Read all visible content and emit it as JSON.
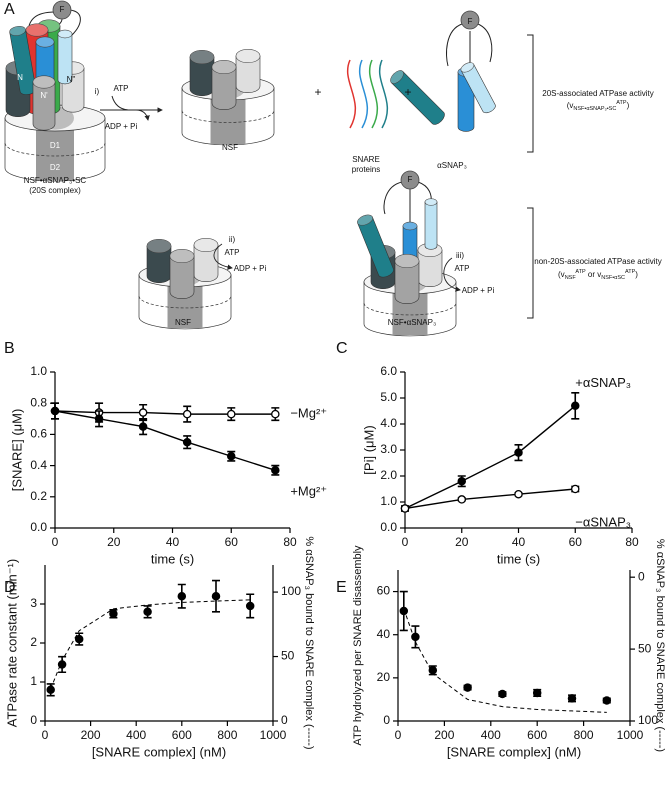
{
  "diagram": {
    "panel_label": "A",
    "top_row": {
      "complex": {
        "f": "F",
        "domains": [
          "N",
          "N'",
          "N''",
          "D1",
          "D2"
        ],
        "label": "NSF•αSNAP₃•SC",
        "sublabel": "(20S complex)"
      },
      "step": "i)",
      "reactant": "ATP",
      "product": "ADP + Pi",
      "nsf_label": "NSF",
      "plus": [
        "+",
        "+"
      ],
      "snare_label": [
        "SNARE",
        "proteins"
      ],
      "snap": {
        "f": "F",
        "label": "αSNAP₃"
      },
      "activity": "20S-associated ATPase activity",
      "rate_parts": [
        {
          "text": "(v"
        },
        {
          "text": "NSF•αSNAP₃•SC",
          "shift": "sub"
        },
        {
          "text": "ATP",
          "shift": "super"
        },
        {
          "text": ")"
        }
      ]
    },
    "bottom_row": {
      "nsf_label": "NSF",
      "nsf_step": "ii)",
      "nsf_reactant": "ATP",
      "nsf_product": "ADP + Pi",
      "complex": {
        "f": "F",
        "label": "NSF•αSNAP₃"
      },
      "complex_step": "iii)",
      "complex_reactant": "ATP",
      "complex_product": "ADP + Pi",
      "activity": "non-20S-associated ATPase activity",
      "rate_parts": [
        {
          "text": "(v"
        },
        {
          "text": "NSF",
          "shift": "sub"
        },
        {
          "text": "ATP",
          "shift": "super"
        },
        {
          "text": " or v"
        },
        {
          "text": "NSF•αSC",
          "shift": "sub"
        },
        {
          "text": "ATP",
          "shift": "super"
        },
        {
          "text": ")"
        }
      ]
    }
  },
  "chart_data": [
    {
      "type": "line",
      "panel_label": "B",
      "xlabel": "time (s)",
      "ylabel": "[SNARE] (μM)",
      "xlim": [
        0,
        80
      ],
      "ylim": [
        0,
        1
      ],
      "xticks": [
        0,
        20,
        40,
        60,
        80
      ],
      "yticks": [
        {
          "value": 0,
          "label": "0.0"
        },
        0.2,
        0.4,
        0.6,
        0.8,
        {
          "value": 1,
          "label": "1.0"
        }
      ],
      "x": [
        0,
        15,
        30,
        45,
        60,
        75
      ],
      "series": [
        {
          "name": "−Mg²⁺",
          "color": "#000000",
          "marker": "open",
          "line": "solid",
          "values": [
            0.75,
            0.74,
            0.74,
            0.73,
            0.73,
            0.73
          ],
          "errors": [
            0.05,
            0.06,
            0.05,
            0.05,
            0.04,
            0.04
          ]
        },
        {
          "name": "+Mg²⁺",
          "color": "#000000",
          "marker": "filled",
          "line": "solid",
          "values": [
            0.75,
            0.7,
            0.65,
            0.55,
            0.46,
            0.37
          ],
          "errors": [
            0.05,
            0.05,
            0.05,
            0.04,
            0.03,
            0.03
          ]
        }
      ]
    },
    {
      "type": "line",
      "panel_label": "C",
      "xlabel": "time (s)",
      "ylabel": "[Pi] (μM)",
      "xlim": [
        0,
        80
      ],
      "ylim": [
        0,
        6
      ],
      "xticks": [
        0,
        20,
        40,
        60,
        80
      ],
      "yticks": [
        {
          "value": 0,
          "label": "0.0"
        },
        {
          "value": 1,
          "label": "1.0"
        },
        {
          "value": 2,
          "label": "2.0"
        },
        {
          "value": 3,
          "label": "3.0"
        },
        {
          "value": 4,
          "label": "4.0"
        },
        {
          "value": 5,
          "label": "5.0"
        },
        {
          "value": 6,
          "label": "6.0"
        }
      ],
      "x": [
        0,
        20,
        40,
        60
      ],
      "series": [
        {
          "name": "+αSNAP₃",
          "color": "#000000",
          "marker": "filled",
          "line": "solid",
          "values": [
            0.75,
            1.8,
            2.9,
            4.7
          ],
          "errors": [
            0.1,
            0.2,
            0.3,
            0.5
          ]
        },
        {
          "name": "−αSNAP₃",
          "color": "#000000",
          "marker": "open",
          "line": "solid",
          "values": [
            0.75,
            1.1,
            1.3,
            1.5
          ],
          "errors": [
            0.05,
            0.05,
            0.05,
            0.1
          ]
        }
      ]
    },
    {
      "type": "line",
      "panel_label": "D",
      "xlabel": "[SNARE complex] (nM)",
      "ylabel": "ATPase rate constant (min⁻¹)",
      "y2label": "% αSNAP₃ bound to SNARE complex (-----)",
      "xlim": [
        0,
        1000
      ],
      "ylim": [
        0,
        4
      ],
      "y2lim": [
        0,
        121
      ],
      "xticks": [
        0,
        200,
        400,
        600,
        800,
        1000
      ],
      "yticks": [
        0,
        1,
        2,
        3
      ],
      "y2ticks": [
        0,
        50,
        100
      ],
      "x": [
        25,
        75,
        150,
        300,
        450,
        600,
        750,
        900
      ],
      "series": [
        {
          "color": "#000000",
          "marker": "filled",
          "line": "none",
          "values": [
            0.8,
            1.45,
            2.1,
            2.75,
            2.8,
            3.2,
            3.2,
            2.95
          ],
          "errors": [
            0.15,
            0.2,
            0.15,
            0.1,
            0.15,
            0.3,
            0.4,
            0.3
          ]
        },
        {
          "color": "#000000",
          "marker": "none",
          "line": "dashed",
          "axis": "y2",
          "values": [
            25,
            47,
            70,
            87,
            90,
            92,
            93,
            94
          ]
        }
      ]
    },
    {
      "type": "line",
      "panel_label": "E",
      "xlabel": "[SNARE complex] (nM)",
      "ylabel": "ATP hydrolyzed per SNARE disassembly",
      "y2label": "% αSNAP₃ bound to SNARE complex (-----)",
      "xlim": [
        0,
        1000
      ],
      "ylim": [
        0,
        70
      ],
      "y2lim": [
        100,
        -5
      ],
      "xticks": [
        0,
        200,
        400,
        600,
        800,
        1000
      ],
      "yticks": [
        0,
        20,
        40,
        60
      ],
      "y2ticks": [
        0,
        50,
        100
      ],
      "x": [
        25,
        75,
        150,
        300,
        450,
        600,
        750,
        900
      ],
      "series": [
        {
          "color": "#000000",
          "marker": "filled",
          "line": "none",
          "values": [
            51,
            39,
            23.5,
            15.5,
            12.5,
            13,
            10.5,
            9.5
          ],
          "errors": [
            9,
            5,
            2,
            1,
            1,
            1.5,
            1.5,
            1
          ]
        },
        {
          "color": "#000000",
          "marker": "none",
          "line": "dashed",
          "axis": "y2",
          "values": [
            22,
            45,
            67,
            85,
            90,
            92,
            93,
            94
          ]
        }
      ]
    }
  ]
}
